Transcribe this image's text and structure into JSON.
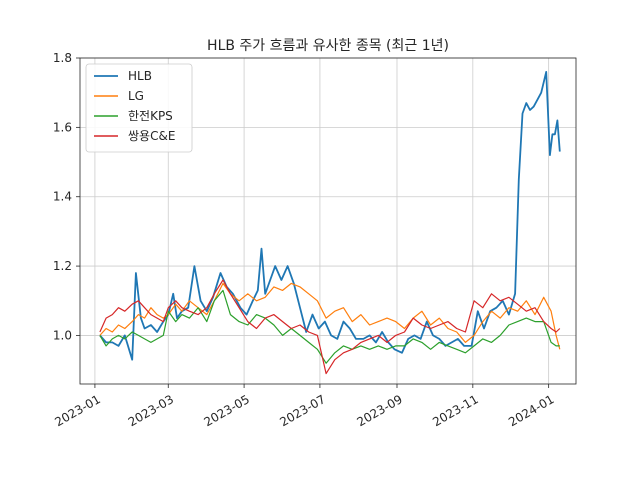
{
  "chart_data": {
    "type": "line",
    "title": "HLB 주가 흐름과 유사한 종목 (최근 1년)",
    "xlabel": "",
    "ylabel": "",
    "ylim": [
      0.86,
      1.8
    ],
    "xlim": [
      "2022-12-20",
      "2024-01-23"
    ],
    "grid": true,
    "legend_position": "top-left",
    "x_ticks": [
      {
        "date": "2023-01-01",
        "label": "2023-01"
      },
      {
        "date": "2023-03-01",
        "label": "2023-03"
      },
      {
        "date": "2023-05-01",
        "label": "2023-05"
      },
      {
        "date": "2023-07-01",
        "label": "2023-07"
      },
      {
        "date": "2023-09-01",
        "label": "2023-09"
      },
      {
        "date": "2023-11-01",
        "label": "2023-11"
      },
      {
        "date": "2024-01-01",
        "label": "2024-01"
      }
    ],
    "y_ticks": [
      {
        "value": 1.0,
        "label": "1.0"
      },
      {
        "value": 1.2,
        "label": "1.2"
      },
      {
        "value": 1.4,
        "label": "1.4"
      },
      {
        "value": 1.6,
        "label": "1.6"
      },
      {
        "value": 1.8,
        "label": "1.8"
      }
    ],
    "series": [
      {
        "name": "HLB",
        "color": "#1f77b4",
        "points": [
          [
            "2023-01-05",
            1.0
          ],
          [
            "2023-01-10",
            0.98
          ],
          [
            "2023-01-15",
            0.98
          ],
          [
            "2023-01-20",
            0.97
          ],
          [
            "2023-01-25",
            1.0
          ],
          [
            "2023-01-31",
            0.93
          ],
          [
            "2023-02-03",
            1.18
          ],
          [
            "2023-02-07",
            1.05
          ],
          [
            "2023-02-10",
            1.02
          ],
          [
            "2023-02-15",
            1.03
          ],
          [
            "2023-02-20",
            1.01
          ],
          [
            "2023-02-25",
            1.04
          ],
          [
            "2023-03-01",
            1.06
          ],
          [
            "2023-03-05",
            1.12
          ],
          [
            "2023-03-08",
            1.05
          ],
          [
            "2023-03-12",
            1.07
          ],
          [
            "2023-03-17",
            1.08
          ],
          [
            "2023-03-22",
            1.2
          ],
          [
            "2023-03-27",
            1.1
          ],
          [
            "2023-04-01",
            1.07
          ],
          [
            "2023-04-06",
            1.11
          ],
          [
            "2023-04-12",
            1.18
          ],
          [
            "2023-04-17",
            1.14
          ],
          [
            "2023-04-22",
            1.12
          ],
          [
            "2023-04-28",
            1.08
          ],
          [
            "2023-05-03",
            1.06
          ],
          [
            "2023-05-08",
            1.1
          ],
          [
            "2023-05-12",
            1.13
          ],
          [
            "2023-05-15",
            1.25
          ],
          [
            "2023-05-18",
            1.12
          ],
          [
            "2023-05-22",
            1.16
          ],
          [
            "2023-05-26",
            1.2
          ],
          [
            "2023-05-31",
            1.16
          ],
          [
            "2023-06-05",
            1.2
          ],
          [
            "2023-06-10",
            1.15
          ],
          [
            "2023-06-15",
            1.08
          ],
          [
            "2023-06-20",
            1.01
          ],
          [
            "2023-06-25",
            1.06
          ],
          [
            "2023-06-30",
            1.02
          ],
          [
            "2023-07-05",
            1.04
          ],
          [
            "2023-07-10",
            1.0
          ],
          [
            "2023-07-15",
            0.99
          ],
          [
            "2023-07-20",
            1.04
          ],
          [
            "2023-07-25",
            1.02
          ],
          [
            "2023-07-30",
            0.99
          ],
          [
            "2023-08-05",
            0.99
          ],
          [
            "2023-08-10",
            1.0
          ],
          [
            "2023-08-15",
            0.98
          ],
          [
            "2023-08-20",
            1.01
          ],
          [
            "2023-08-25",
            0.98
          ],
          [
            "2023-08-30",
            0.96
          ],
          [
            "2023-09-05",
            0.95
          ],
          [
            "2023-09-10",
            0.99
          ],
          [
            "2023-09-15",
            1.0
          ],
          [
            "2023-09-20",
            0.99
          ],
          [
            "2023-09-25",
            1.04
          ],
          [
            "2023-09-30",
            1.0
          ],
          [
            "2023-10-05",
            0.99
          ],
          [
            "2023-10-10",
            0.97
          ],
          [
            "2023-10-15",
            0.98
          ],
          [
            "2023-10-20",
            0.99
          ],
          [
            "2023-10-25",
            0.97
          ],
          [
            "2023-10-31",
            0.97
          ],
          [
            "2023-11-05",
            1.07
          ],
          [
            "2023-11-10",
            1.02
          ],
          [
            "2023-11-15",
            1.07
          ],
          [
            "2023-11-20",
            1.08
          ],
          [
            "2023-11-25",
            1.1
          ],
          [
            "2023-11-30",
            1.06
          ],
          [
            "2023-12-05",
            1.12
          ],
          [
            "2023-12-08",
            1.45
          ],
          [
            "2023-12-11",
            1.64
          ],
          [
            "2023-12-14",
            1.67
          ],
          [
            "2023-12-17",
            1.65
          ],
          [
            "2023-12-20",
            1.66
          ],
          [
            "2023-12-23",
            1.68
          ],
          [
            "2023-12-26",
            1.7
          ],
          [
            "2023-12-30",
            1.76
          ],
          [
            "2024-01-02",
            1.52
          ],
          [
            "2024-01-04",
            1.58
          ],
          [
            "2024-01-06",
            1.58
          ],
          [
            "2024-01-08",
            1.62
          ],
          [
            "2024-01-10",
            1.53
          ]
        ]
      },
      {
        "name": "LG",
        "color": "#ff7f0e",
        "points": [
          [
            "2023-01-05",
            1.0
          ],
          [
            "2023-01-10",
            1.02
          ],
          [
            "2023-01-15",
            1.01
          ],
          [
            "2023-01-20",
            1.03
          ],
          [
            "2023-01-25",
            1.02
          ],
          [
            "2023-01-31",
            1.04
          ],
          [
            "2023-02-05",
            1.06
          ],
          [
            "2023-02-10",
            1.05
          ],
          [
            "2023-02-15",
            1.08
          ],
          [
            "2023-02-20",
            1.06
          ],
          [
            "2023-02-25",
            1.05
          ],
          [
            "2023-03-01",
            1.06
          ],
          [
            "2023-03-07",
            1.09
          ],
          [
            "2023-03-12",
            1.07
          ],
          [
            "2023-03-18",
            1.1
          ],
          [
            "2023-03-25",
            1.08
          ],
          [
            "2023-04-01",
            1.06
          ],
          [
            "2023-04-07",
            1.1
          ],
          [
            "2023-04-14",
            1.15
          ],
          [
            "2023-04-20",
            1.12
          ],
          [
            "2023-04-27",
            1.1
          ],
          [
            "2023-05-04",
            1.12
          ],
          [
            "2023-05-11",
            1.1
          ],
          [
            "2023-05-18",
            1.11
          ],
          [
            "2023-05-25",
            1.14
          ],
          [
            "2023-06-01",
            1.13
          ],
          [
            "2023-06-08",
            1.15
          ],
          [
            "2023-06-15",
            1.14
          ],
          [
            "2023-06-22",
            1.12
          ],
          [
            "2023-06-29",
            1.1
          ],
          [
            "2023-07-06",
            1.05
          ],
          [
            "2023-07-13",
            1.07
          ],
          [
            "2023-07-20",
            1.08
          ],
          [
            "2023-07-27",
            1.04
          ],
          [
            "2023-08-03",
            1.06
          ],
          [
            "2023-08-10",
            1.03
          ],
          [
            "2023-08-17",
            1.04
          ],
          [
            "2023-08-24",
            1.05
          ],
          [
            "2023-08-31",
            1.04
          ],
          [
            "2023-09-07",
            1.02
          ],
          [
            "2023-09-14",
            1.05
          ],
          [
            "2023-09-21",
            1.07
          ],
          [
            "2023-09-28",
            1.03
          ],
          [
            "2023-10-05",
            1.05
          ],
          [
            "2023-10-12",
            1.02
          ],
          [
            "2023-10-19",
            1.01
          ],
          [
            "2023-10-26",
            0.98
          ],
          [
            "2023-11-02",
            1.0
          ],
          [
            "2023-11-09",
            1.04
          ],
          [
            "2023-11-16",
            1.07
          ],
          [
            "2023-11-23",
            1.05
          ],
          [
            "2023-11-30",
            1.08
          ],
          [
            "2023-12-07",
            1.07
          ],
          [
            "2023-12-14",
            1.1
          ],
          [
            "2023-12-21",
            1.06
          ],
          [
            "2023-12-28",
            1.11
          ],
          [
            "2024-01-03",
            1.07
          ],
          [
            "2024-01-07",
            1.0
          ],
          [
            "2024-01-10",
            0.96
          ]
        ]
      },
      {
        "name": "한전KPS",
        "color": "#2ca02c",
        "points": [
          [
            "2023-01-05",
            1.0
          ],
          [
            "2023-01-10",
            0.97
          ],
          [
            "2023-01-15",
            0.99
          ],
          [
            "2023-01-20",
            1.0
          ],
          [
            "2023-01-25",
            0.99
          ],
          [
            "2023-01-31",
            1.01
          ],
          [
            "2023-02-05",
            1.0
          ],
          [
            "2023-02-10",
            0.99
          ],
          [
            "2023-02-15",
            0.98
          ],
          [
            "2023-02-20",
            0.99
          ],
          [
            "2023-02-25",
            1.0
          ],
          [
            "2023-03-01",
            1.07
          ],
          [
            "2023-03-07",
            1.04
          ],
          [
            "2023-03-12",
            1.06
          ],
          [
            "2023-03-18",
            1.05
          ],
          [
            "2023-03-25",
            1.08
          ],
          [
            "2023-04-01",
            1.04
          ],
          [
            "2023-04-07",
            1.1
          ],
          [
            "2023-04-14",
            1.13
          ],
          [
            "2023-04-20",
            1.06
          ],
          [
            "2023-04-27",
            1.04
          ],
          [
            "2023-05-04",
            1.03
          ],
          [
            "2023-05-11",
            1.06
          ],
          [
            "2023-05-18",
            1.05
          ],
          [
            "2023-05-25",
            1.03
          ],
          [
            "2023-06-01",
            1.0
          ],
          [
            "2023-06-08",
            1.02
          ],
          [
            "2023-06-15",
            1.0
          ],
          [
            "2023-06-22",
            0.98
          ],
          [
            "2023-06-29",
            0.96
          ],
          [
            "2023-07-06",
            0.92
          ],
          [
            "2023-07-13",
            0.95
          ],
          [
            "2023-07-20",
            0.97
          ],
          [
            "2023-07-27",
            0.96
          ],
          [
            "2023-08-03",
            0.97
          ],
          [
            "2023-08-10",
            0.96
          ],
          [
            "2023-08-17",
            0.97
          ],
          [
            "2023-08-24",
            0.96
          ],
          [
            "2023-08-31",
            0.97
          ],
          [
            "2023-09-07",
            0.97
          ],
          [
            "2023-09-14",
            0.99
          ],
          [
            "2023-09-21",
            0.98
          ],
          [
            "2023-09-28",
            0.96
          ],
          [
            "2023-10-05",
            0.98
          ],
          [
            "2023-10-12",
            0.97
          ],
          [
            "2023-10-19",
            0.96
          ],
          [
            "2023-10-26",
            0.95
          ],
          [
            "2023-11-02",
            0.97
          ],
          [
            "2023-11-09",
            0.99
          ],
          [
            "2023-11-16",
            0.98
          ],
          [
            "2023-11-23",
            1.0
          ],
          [
            "2023-11-30",
            1.03
          ],
          [
            "2023-12-07",
            1.04
          ],
          [
            "2023-12-14",
            1.05
          ],
          [
            "2023-12-21",
            1.04
          ],
          [
            "2023-12-28",
            1.04
          ],
          [
            "2024-01-03",
            0.98
          ],
          [
            "2024-01-07",
            0.97
          ],
          [
            "2024-01-10",
            0.97
          ]
        ]
      },
      {
        "name": "쌍용C&E",
        "color": "#d62728",
        "points": [
          [
            "2023-01-05",
            1.01
          ],
          [
            "2023-01-10",
            1.05
          ],
          [
            "2023-01-15",
            1.06
          ],
          [
            "2023-01-20",
            1.08
          ],
          [
            "2023-01-25",
            1.07
          ],
          [
            "2023-01-31",
            1.09
          ],
          [
            "2023-02-05",
            1.1
          ],
          [
            "2023-02-10",
            1.08
          ],
          [
            "2023-02-15",
            1.06
          ],
          [
            "2023-02-20",
            1.05
          ],
          [
            "2023-02-25",
            1.04
          ],
          [
            "2023-03-01",
            1.08
          ],
          [
            "2023-03-07",
            1.1
          ],
          [
            "2023-03-12",
            1.08
          ],
          [
            "2023-03-18",
            1.07
          ],
          [
            "2023-03-25",
            1.06
          ],
          [
            "2023-04-01",
            1.08
          ],
          [
            "2023-04-07",
            1.12
          ],
          [
            "2023-04-14",
            1.16
          ],
          [
            "2023-04-20",
            1.12
          ],
          [
            "2023-04-27",
            1.08
          ],
          [
            "2023-05-04",
            1.04
          ],
          [
            "2023-05-11",
            1.02
          ],
          [
            "2023-05-18",
            1.05
          ],
          [
            "2023-05-25",
            1.06
          ],
          [
            "2023-06-01",
            1.04
          ],
          [
            "2023-06-08",
            1.02
          ],
          [
            "2023-06-15",
            1.03
          ],
          [
            "2023-06-22",
            1.01
          ],
          [
            "2023-06-29",
            1.0
          ],
          [
            "2023-07-06",
            0.89
          ],
          [
            "2023-07-13",
            0.93
          ],
          [
            "2023-07-20",
            0.95
          ],
          [
            "2023-07-27",
            0.96
          ],
          [
            "2023-08-03",
            0.98
          ],
          [
            "2023-08-10",
            0.99
          ],
          [
            "2023-08-17",
            1.0
          ],
          [
            "2023-08-24",
            0.98
          ],
          [
            "2023-08-31",
            1.0
          ],
          [
            "2023-09-07",
            1.01
          ],
          [
            "2023-09-14",
            1.05
          ],
          [
            "2023-09-21",
            1.03
          ],
          [
            "2023-09-28",
            1.02
          ],
          [
            "2023-10-05",
            1.03
          ],
          [
            "2023-10-12",
            1.04
          ],
          [
            "2023-10-19",
            1.02
          ],
          [
            "2023-10-26",
            1.01
          ],
          [
            "2023-11-02",
            1.1
          ],
          [
            "2023-11-09",
            1.08
          ],
          [
            "2023-11-16",
            1.12
          ],
          [
            "2023-11-23",
            1.1
          ],
          [
            "2023-11-30",
            1.11
          ],
          [
            "2023-12-07",
            1.09
          ],
          [
            "2023-12-14",
            1.07
          ],
          [
            "2023-12-21",
            1.08
          ],
          [
            "2023-12-28",
            1.04
          ],
          [
            "2024-01-03",
            1.02
          ],
          [
            "2024-01-07",
            1.01
          ],
          [
            "2024-01-10",
            1.02
          ]
        ]
      }
    ]
  }
}
